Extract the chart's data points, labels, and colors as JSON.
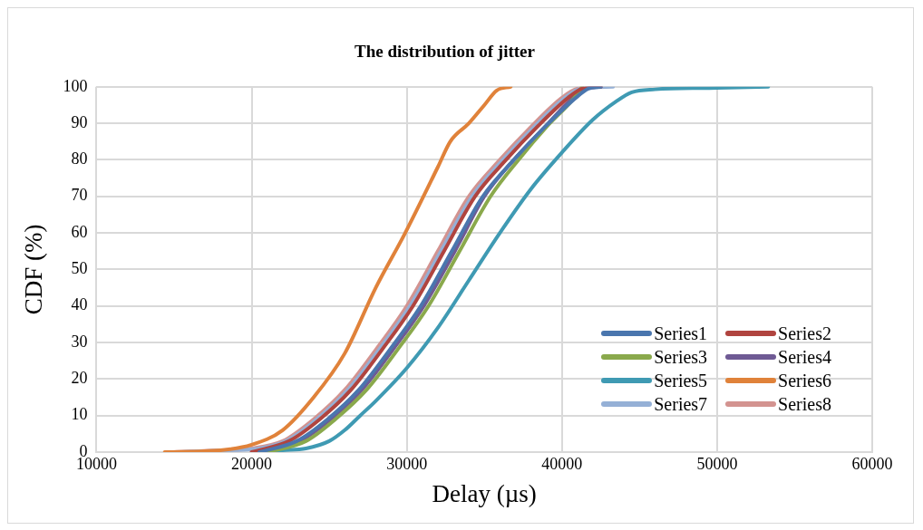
{
  "chart_data": {
    "type": "line",
    "title": "The distribution of jitter",
    "xlabel": "Delay (µs)",
    "ylabel": "CDF (%)",
    "xlim": [
      10000,
      60000
    ],
    "xticks": [
      10000,
      20000,
      30000,
      40000,
      50000,
      60000
    ],
    "ylim": [
      0,
      100
    ],
    "yticks": [
      0,
      10,
      20,
      30,
      40,
      50,
      60,
      70,
      80,
      90,
      100
    ],
    "grid": true,
    "legend": "bottom right",
    "marker": "none",
    "line_style": "solid",
    "series": [
      {
        "name": "Series1",
        "color": "#4a76ae",
        "x": [
          20500,
          22900,
          24900,
          26900,
          28900,
          30900,
          32900,
          34900,
          36900,
          38900,
          40900,
          41700,
          42500
        ],
        "values": [
          0,
          3,
          9,
          17,
          28,
          40,
          55,
          70,
          80,
          89,
          97,
          99.5,
          100
        ]
      },
      {
        "name": "Series2",
        "color": "#b0443f",
        "x": [
          20000,
          22400,
          24400,
          26400,
          28400,
          30400,
          32400,
          34400,
          36400,
          38400,
          40400,
          41300,
          42500
        ],
        "values": [
          0,
          3,
          9,
          17,
          28,
          40,
          55,
          70,
          80,
          89,
          97,
          99.5,
          100
        ]
      },
      {
        "name": "Series3",
        "color": "#8aa94c",
        "x": [
          21000,
          23500,
          25400,
          27400,
          29400,
          31400,
          33400,
          35400,
          37200,
          39000,
          40800,
          41300
        ],
        "values": [
          0,
          3,
          9,
          17,
          28,
          40,
          55,
          70,
          80,
          89,
          97,
          100
        ]
      },
      {
        "name": "Series4",
        "color": "#6f5a94",
        "x": [
          20800,
          23100,
          25100,
          27100,
          29100,
          31100,
          33100,
          35000,
          36900,
          38900,
          40700,
          41500,
          42500
        ],
        "values": [
          0,
          3,
          9,
          17,
          28,
          40,
          55,
          70,
          80,
          89,
          97,
          99.5,
          100
        ]
      },
      {
        "name": "Series5",
        "color": "#3f9ab3",
        "x": [
          20500,
          22000,
          23500,
          25000,
          26000,
          27000,
          28000,
          30000,
          32000,
          34000,
          36000,
          38000,
          40000,
          42000,
          43500,
          44500,
          46000,
          50000,
          53300
        ],
        "values": [
          0,
          0.5,
          1,
          3,
          6,
          10,
          14,
          23,
          34,
          47,
          60,
          72,
          82,
          91,
          96,
          98.5,
          99.3,
          99.7,
          100
        ]
      },
      {
        "name": "Series6",
        "color": "#e0823a",
        "x": [
          14400,
          18000,
          20000,
          22000,
          24000,
          26000,
          28000,
          29900,
          32000,
          32800,
          34000,
          35000,
          35800,
          36700
        ],
        "values": [
          0,
          0.5,
          2,
          6,
          15,
          27,
          45,
          60,
          78,
          85,
          90,
          95,
          99,
          100
        ]
      },
      {
        "name": "Series7",
        "color": "#95b0d6",
        "x": [
          15500,
          18500,
          20500,
          22200,
          24200,
          26200,
          28200,
          30200,
          32200,
          34200,
          36200,
          38200,
          40200,
          41200,
          43300
        ],
        "values": [
          0,
          0.5,
          1,
          3,
          9,
          17,
          28,
          40,
          55,
          70,
          80,
          89,
          97,
          99.5,
          100
        ]
      },
      {
        "name": "Series8",
        "color": "#d39390",
        "x": [
          15000,
          18000,
          20000,
          22000,
          24000,
          26000,
          28000,
          30000,
          32000,
          34000,
          36000,
          38000,
          40000,
          41000,
          42500
        ],
        "values": [
          0,
          0.5,
          1,
          3,
          9,
          17,
          28,
          40,
          55,
          70,
          80,
          89,
          97,
          99.5,
          100
        ]
      }
    ]
  }
}
